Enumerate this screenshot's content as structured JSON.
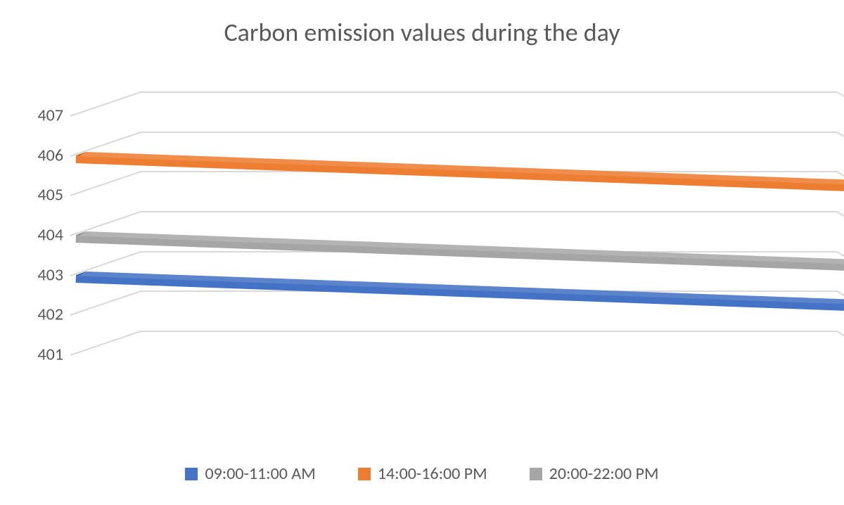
{
  "title": "Carbon emission values during the day",
  "chart": {
    "type": "3d-line",
    "title_fontsize": 36,
    "title_color": "#595959",
    "background_color": "#ffffff",
    "grid_color": "#d9d9d9",
    "label_fontsize": 24,
    "label_color": "#595959",
    "ylim": [
      401,
      407
    ],
    "ytick_step": 1,
    "yticks": [
      401,
      402,
      403,
      404,
      405,
      406,
      407
    ],
    "depth_offset_x": 100,
    "depth_offset_y": -34,
    "ribbon_thickness": 11,
    "series": [
      {
        "name": "09:00-11:00 AM",
        "color": "#4472c4",
        "shade_top": "#5b84cd",
        "shade_end": "#39619f",
        "start_value": 403.0,
        "end_value": 403.0
      },
      {
        "name": "14:00-16:00 PM",
        "color": "#ed7d31",
        "shade_top": "#f18d4b",
        "shade_end": "#c2641f",
        "start_value": 406.0,
        "end_value": 406.0
      },
      {
        "name": "20:00-22:00 PM",
        "color": "#a5a5a5",
        "shade_top": "#b3b3b3",
        "shade_end": "#888888",
        "start_value": 404.0,
        "end_value": 404.0
      }
    ],
    "legend_order": [
      0,
      1,
      2
    ],
    "draw_order": [
      1,
      2,
      0
    ]
  }
}
